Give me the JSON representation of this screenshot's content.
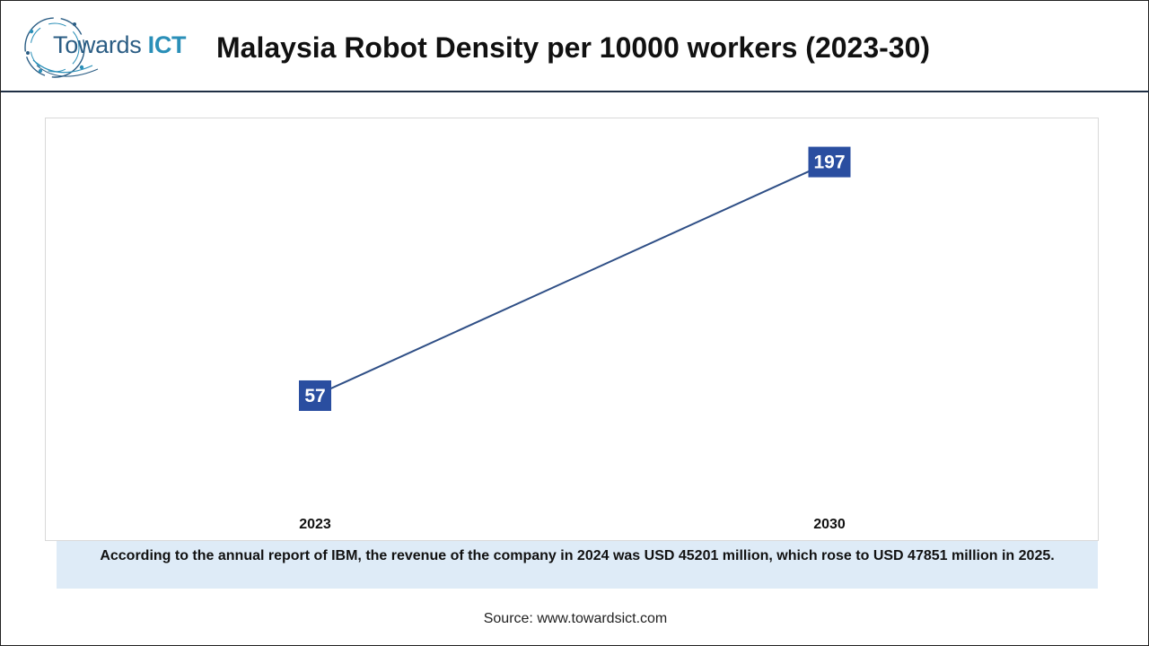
{
  "brand": {
    "word": "Towards",
    "accent": "ICT",
    "primary_color": "#2b5d84",
    "accent_color": "#2a8fb8"
  },
  "header": {
    "title": "Malaysia Robot Density per 10000 workers (2023-30)"
  },
  "chart_data": {
    "type": "line",
    "x": [
      "2023",
      "2030"
    ],
    "series": [
      {
        "values": [
          57,
          197
        ],
        "color": "#2f4f86"
      }
    ],
    "data_labels": [
      "57",
      "197"
    ],
    "ylim": [
      0,
      250
    ],
    "grid": false,
    "legend": "none",
    "label_bg_color": "#2a4ea0"
  },
  "note": {
    "text": "According to the annual report of IBM, the revenue of the company in 2024 was USD 45201 million, which rose to USD 47851 million in 2025."
  },
  "footer": {
    "source": "Source: www.towardsict.com"
  }
}
